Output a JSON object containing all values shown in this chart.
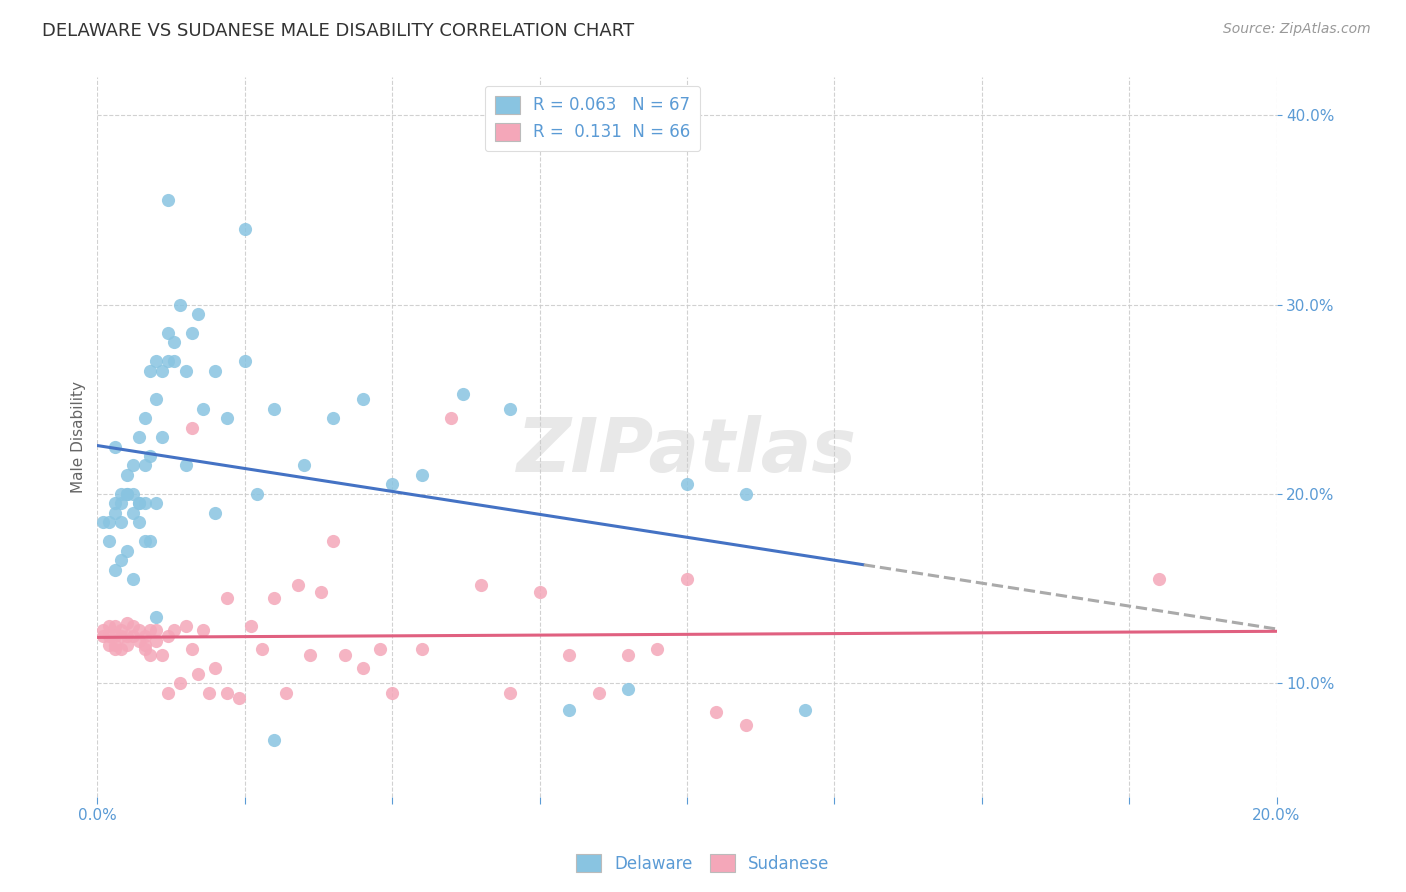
{
  "title": "DELAWARE VS SUDANESE MALE DISABILITY CORRELATION CHART",
  "source": "Source: ZipAtlas.com",
  "ylabel_label": "Male Disability",
  "x_min": 0.0,
  "x_max": 0.2,
  "y_min": 0.04,
  "y_max": 0.42,
  "x_tick_positions": [
    0.0,
    0.025,
    0.05,
    0.075,
    0.1,
    0.125,
    0.15,
    0.175,
    0.2
  ],
  "x_tick_labels": [
    "0.0%",
    "",
    "",
    "",
    "",
    "",
    "",
    "",
    "20.0%"
  ],
  "y_ticks": [
    0.1,
    0.2,
    0.3,
    0.4
  ],
  "color_delaware": "#89C4E1",
  "color_sudanese": "#F4A7B9",
  "color_trendline_delaware": "#4472C4",
  "color_trendline_sudanese": "#E06080",
  "color_trendline_ext": "#AAAAAA",
  "watermark": "ZIPatlas",
  "axis_color": "#5B9BD5",
  "del_trendline_split": 0.13,
  "del_x": [
    0.001,
    0.002,
    0.002,
    0.003,
    0.003,
    0.003,
    0.004,
    0.004,
    0.004,
    0.005,
    0.005,
    0.005,
    0.006,
    0.006,
    0.006,
    0.007,
    0.007,
    0.007,
    0.008,
    0.008,
    0.008,
    0.009,
    0.009,
    0.01,
    0.01,
    0.01,
    0.011,
    0.011,
    0.012,
    0.012,
    0.013,
    0.013,
    0.014,
    0.015,
    0.016,
    0.017,
    0.018,
    0.02,
    0.022,
    0.025,
    0.027,
    0.03,
    0.035,
    0.04,
    0.045,
    0.05,
    0.055,
    0.062,
    0.07,
    0.08,
    0.09,
    0.1,
    0.11,
    0.12,
    0.003,
    0.004,
    0.005,
    0.006,
    0.007,
    0.008,
    0.009,
    0.01,
    0.012,
    0.015,
    0.02,
    0.025,
    0.03
  ],
  "del_y": [
    0.185,
    0.185,
    0.175,
    0.19,
    0.195,
    0.225,
    0.185,
    0.195,
    0.2,
    0.2,
    0.2,
    0.21,
    0.19,
    0.2,
    0.215,
    0.185,
    0.195,
    0.23,
    0.195,
    0.215,
    0.24,
    0.22,
    0.265,
    0.27,
    0.25,
    0.195,
    0.265,
    0.23,
    0.27,
    0.285,
    0.27,
    0.28,
    0.3,
    0.265,
    0.285,
    0.295,
    0.245,
    0.265,
    0.24,
    0.27,
    0.2,
    0.245,
    0.215,
    0.24,
    0.25,
    0.205,
    0.21,
    0.253,
    0.245,
    0.086,
    0.097,
    0.205,
    0.2,
    0.086,
    0.16,
    0.165,
    0.17,
    0.155,
    0.195,
    0.175,
    0.175,
    0.135,
    0.355,
    0.215,
    0.19,
    0.34,
    0.07
  ],
  "sud_x": [
    0.001,
    0.001,
    0.002,
    0.002,
    0.002,
    0.003,
    0.003,
    0.003,
    0.003,
    0.004,
    0.004,
    0.004,
    0.005,
    0.005,
    0.005,
    0.006,
    0.006,
    0.007,
    0.007,
    0.008,
    0.008,
    0.008,
    0.009,
    0.009,
    0.01,
    0.01,
    0.011,
    0.012,
    0.012,
    0.013,
    0.014,
    0.015,
    0.016,
    0.017,
    0.018,
    0.019,
    0.02,
    0.022,
    0.024,
    0.026,
    0.028,
    0.03,
    0.032,
    0.034,
    0.036,
    0.038,
    0.04,
    0.042,
    0.045,
    0.048,
    0.05,
    0.055,
    0.06,
    0.065,
    0.07,
    0.075,
    0.08,
    0.085,
    0.09,
    0.095,
    0.1,
    0.105,
    0.11,
    0.18,
    0.016,
    0.022
  ],
  "sud_y": [
    0.128,
    0.125,
    0.13,
    0.12,
    0.125,
    0.13,
    0.12,
    0.118,
    0.125,
    0.128,
    0.118,
    0.125,
    0.132,
    0.12,
    0.125,
    0.125,
    0.13,
    0.122,
    0.128,
    0.12,
    0.118,
    0.125,
    0.115,
    0.128,
    0.122,
    0.128,
    0.115,
    0.095,
    0.125,
    0.128,
    0.1,
    0.13,
    0.118,
    0.105,
    0.128,
    0.095,
    0.108,
    0.095,
    0.092,
    0.13,
    0.118,
    0.145,
    0.095,
    0.152,
    0.115,
    0.148,
    0.175,
    0.115,
    0.108,
    0.118,
    0.095,
    0.118,
    0.24,
    0.152,
    0.095,
    0.148,
    0.115,
    0.095,
    0.115,
    0.118,
    0.155,
    0.085,
    0.078,
    0.155,
    0.235,
    0.145
  ]
}
